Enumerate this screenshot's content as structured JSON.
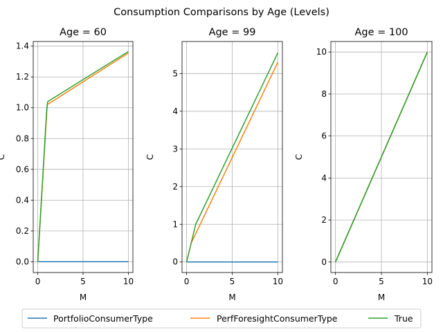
{
  "suptitle": "Consumption Comparisons by Age (Levels)",
  "colors": {
    "PortfolioConsumerType": "#1f77b4",
    "PerfForesightConsumerType": "#ff7f0e",
    "True": "#2ca02c",
    "grid": "#b0b0b0",
    "axes": "#000000"
  },
  "legend": {
    "placement": "bottom-center",
    "entries": [
      "PortfolioConsumerType",
      "PerfForesightConsumerType",
      "True"
    ]
  },
  "chart_data": [
    {
      "type": "line",
      "title": "Age = 60",
      "xlabel": "M",
      "ylabel": "C",
      "xlim": [
        -0.5,
        10.5
      ],
      "ylim": [
        -0.07,
        1.43
      ],
      "xticks": [
        0,
        5,
        10
      ],
      "yticks": [
        0.0,
        0.2,
        0.4,
        0.6,
        0.8,
        1.0,
        1.2,
        1.4
      ],
      "ytick_labels": [
        "0.0",
        "0.2",
        "0.4",
        "0.6",
        "0.8",
        "1.0",
        "1.2",
        "1.4"
      ],
      "grid": true,
      "series": [
        {
          "name": "PortfolioConsumerType",
          "x": [
            0,
            10
          ],
          "y": [
            0.0,
            0.0
          ]
        },
        {
          "name": "PerfForesightConsumerType",
          "x": [
            0,
            1.05,
            10
          ],
          "y": [
            0.0,
            1.02,
            1.355
          ]
        },
        {
          "name": "True",
          "x": [
            0,
            1.0,
            1.1,
            10
          ],
          "y": [
            0.0,
            1.0,
            1.04,
            1.365
          ]
        }
      ]
    },
    {
      "type": "line",
      "title": "Age = 99",
      "xlabel": "M",
      "ylabel": "C",
      "xlim": [
        -0.5,
        10.5
      ],
      "ylim": [
        -0.28,
        5.85
      ],
      "xticks": [
        0,
        5,
        10
      ],
      "yticks": [
        0,
        1,
        2,
        3,
        4,
        5
      ],
      "ytick_labels": [
        "0",
        "1",
        "2",
        "3",
        "4",
        "5"
      ],
      "grid": true,
      "series": [
        {
          "name": "PortfolioConsumerType",
          "x": [
            0,
            10
          ],
          "y": [
            0,
            0
          ]
        },
        {
          "name": "PerfForesightConsumerType",
          "x": [
            0,
            0.5,
            10
          ],
          "y": [
            0,
            0.5,
            5.3
          ]
        },
        {
          "name": "True",
          "x": [
            0,
            0.5,
            1.0,
            10
          ],
          "y": [
            0,
            0.5,
            1.0,
            5.55
          ]
        }
      ]
    },
    {
      "type": "line",
      "title": "Age = 100",
      "xlabel": "M",
      "ylabel": "C",
      "xlim": [
        -0.5,
        10.5
      ],
      "ylim": [
        -0.5,
        10.5
      ],
      "xticks": [
        0,
        5,
        10
      ],
      "yticks": [
        0,
        2,
        4,
        6,
        8,
        10
      ],
      "ytick_labels": [
        "0",
        "2",
        "4",
        "6",
        "8",
        "10"
      ],
      "grid": true,
      "series": [
        {
          "name": "PortfolioConsumerType",
          "x": [
            0,
            10
          ],
          "y": [
            0,
            10
          ]
        },
        {
          "name": "PerfForesightConsumerType",
          "x": [
            0,
            10
          ],
          "y": [
            0,
            10
          ]
        },
        {
          "name": "True",
          "x": [
            0,
            10
          ],
          "y": [
            0,
            10
          ]
        }
      ]
    }
  ]
}
